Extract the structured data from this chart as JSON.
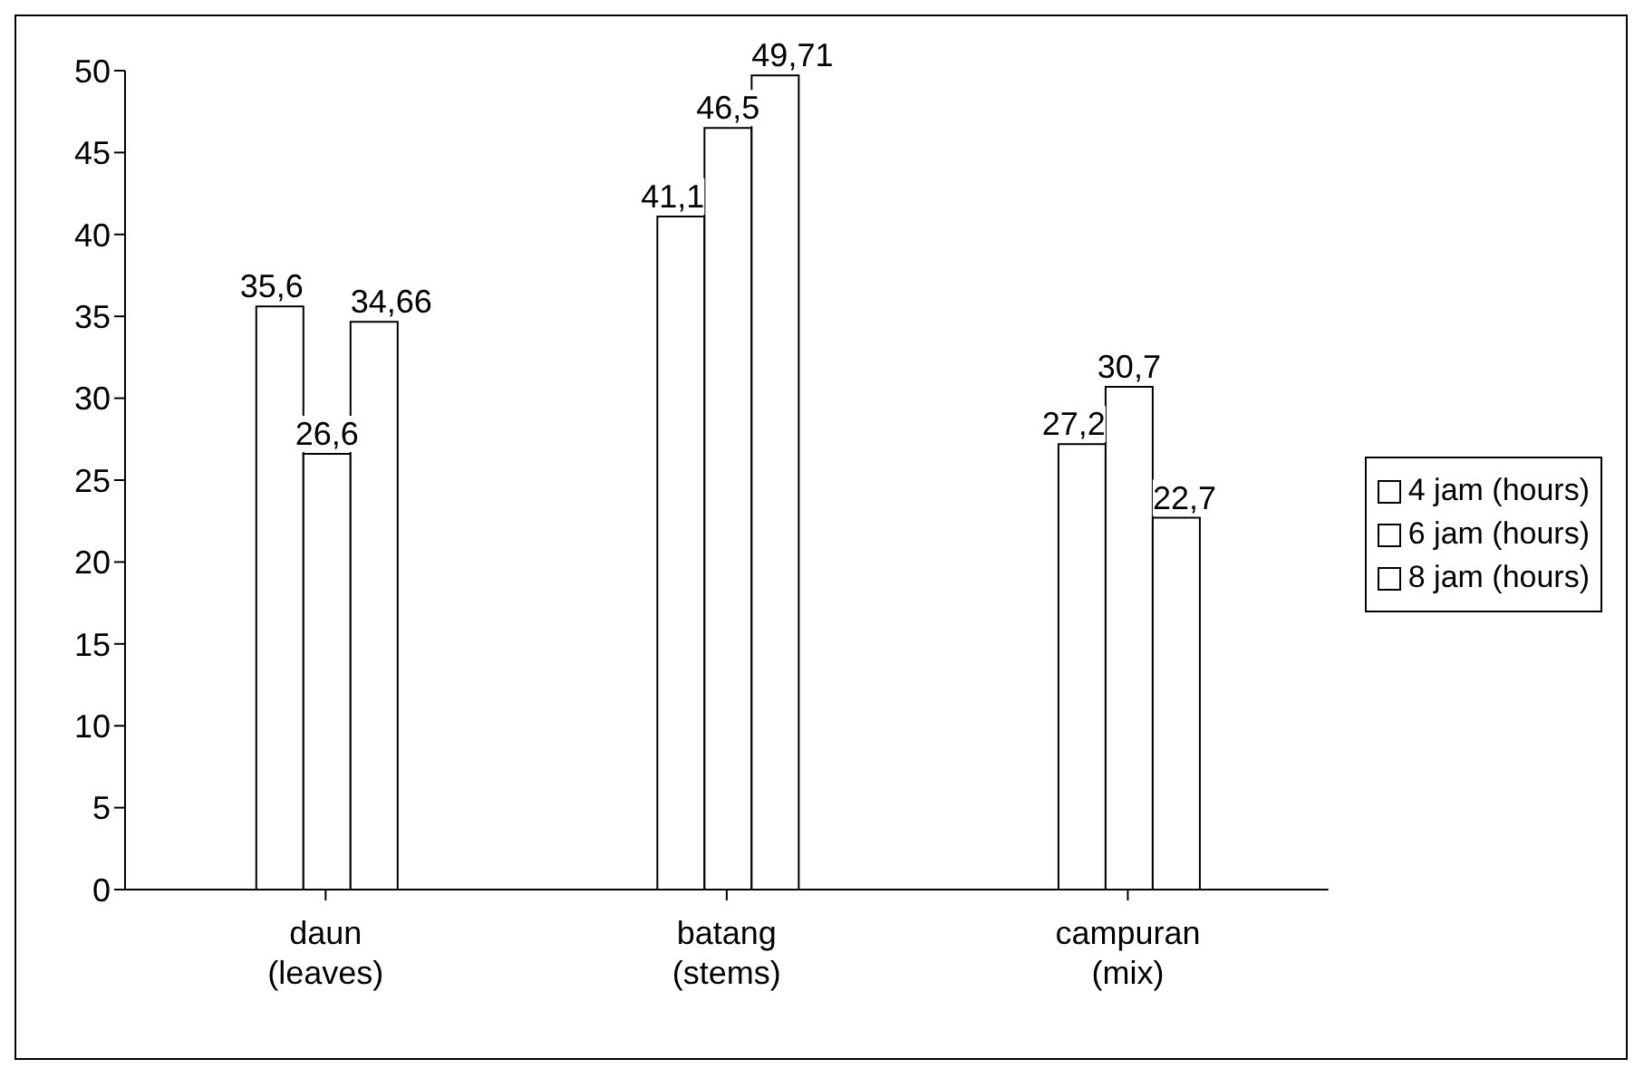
{
  "chart_data": {
    "type": "bar",
    "categories": [
      "daun\n(leaves)",
      "batang\n(stems)",
      "campuran\n(mix)"
    ],
    "series": [
      {
        "name": "4 jam (hours)",
        "color": "#ffffff",
        "values": [
          35.6,
          41.1,
          27.2
        ],
        "value_labels": [
          "35,6",
          "41,1",
          "27,2"
        ]
      },
      {
        "name": "6 jam (hours)",
        "color": "#ffffff",
        "values": [
          26.6,
          46.5,
          30.7
        ],
        "value_labels": [
          "26,6",
          "46,5",
          "30,7"
        ]
      },
      {
        "name": "8 jam (hours)",
        "color": "#ffffff",
        "values": [
          34.66,
          49.71,
          22.7
        ],
        "value_labels": [
          "34,66",
          "49,71",
          "22,7"
        ]
      }
    ],
    "ylim": [
      0,
      50
    ],
    "yticks": [
      0,
      5,
      10,
      15,
      20,
      25,
      30,
      35,
      40,
      45,
      50
    ],
    "grid": false,
    "legend": "right"
  }
}
